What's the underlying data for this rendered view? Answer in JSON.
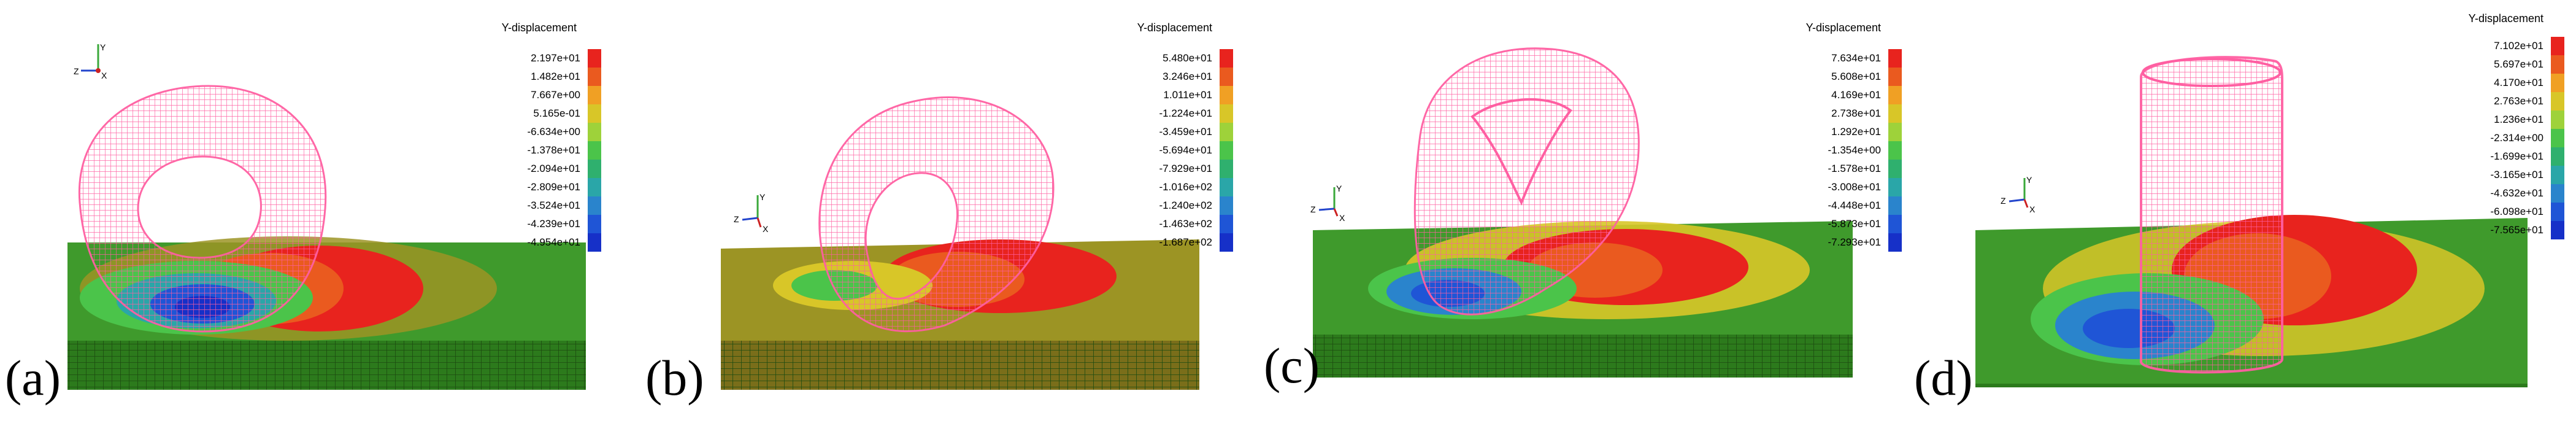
{
  "figure": {
    "panels": [
      {
        "label": "(a)",
        "legend": {
          "title": "Y-displacement",
          "values": [
            "2.197e+01",
            "1.482e+01",
            "7.667e+00",
            "5.165e-01",
            "-6.634e+00",
            "-1.378e+01",
            "-2.094e+01",
            "-2.809e+01",
            "-3.524e+01",
            "-4.239e+01",
            "-4.954e+01"
          ]
        }
      },
      {
        "label": "(b)",
        "legend": {
          "title": "Y-displacement",
          "values": [
            "5.480e+01",
            "3.246e+01",
            "1.011e+01",
            "-1.224e+01",
            "-3.459e+01",
            "-5.694e+01",
            "-7.929e+01",
            "-1.016e+02",
            "-1.240e+02",
            "-1.463e+02",
            "-1.687e+02"
          ]
        }
      },
      {
        "label": "(c)",
        "legend": {
          "title": "Y-displacement",
          "values": [
            "7.634e+01",
            "5.608e+01",
            "4.169e+01",
            "2.738e+01",
            "1.292e+01",
            "-1.354e+00",
            "-1.578e+01",
            "-3.008e+01",
            "-4.448e+01",
            "-5.873e+01",
            "-7.293e+01"
          ]
        }
      },
      {
        "label": "(d)",
        "legend": {
          "title": "Y-displacement",
          "values": [
            "7.102e+01",
            "5.697e+01",
            "4.170e+01",
            "2.763e+01",
            "1.236e+01",
            "-2.314e+00",
            "-1.699e+01",
            "-3.165e+01",
            "-4.632e+01",
            "-6.098e+01",
            "-7.565e+01"
          ]
        }
      }
    ],
    "colors": {
      "colormap": [
        "#e8231e",
        "#ea5a1f",
        "#f0a024",
        "#d8c628",
        "#9ed23a",
        "#4bc44a",
        "#2fb06e",
        "#2aa6a8",
        "#2a84cc",
        "#1f55d6",
        "#1630c8"
      ],
      "mesh": "#ff5fa2",
      "soil_green": "#3f9a2c",
      "soil_olive": "#9c9424",
      "grid_green": "#2c7a1c"
    }
  }
}
